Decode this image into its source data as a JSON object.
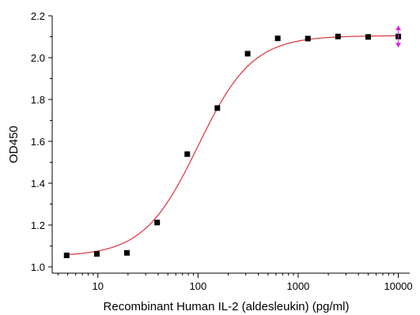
{
  "chart_data": {
    "type": "scatter",
    "title": "",
    "xlabel": "Recombinant Human IL-2 (aldesleukin) (pg/ml)",
    "ylabel": "OD450",
    "x_scale": "log",
    "xlim": [
      3.5,
      13000
    ],
    "ylim": [
      0.97,
      2.2
    ],
    "x_ticks": [
      10,
      100,
      1000,
      10000
    ],
    "x_tick_labels": [
      "10",
      "100",
      "1000",
      "10000"
    ],
    "y_ticks": [
      1.0,
      1.2,
      1.4,
      1.6,
      1.8,
      2.0,
      2.2
    ],
    "y_tick_labels": [
      "1.0",
      "1.2",
      "1.4",
      "1.6",
      "1.8",
      "2.0",
      "2.2"
    ],
    "grid": false,
    "series": [
      {
        "marker": "square",
        "color": "#000000",
        "x": [
          4.88,
          9.77,
          19.5,
          39.1,
          78.1,
          156,
          313,
          625,
          1250,
          2500,
          5000,
          10000
        ],
        "y": [
          1.055,
          1.062,
          1.067,
          1.212,
          1.539,
          1.759,
          2.019,
          2.092,
          2.091,
          2.101,
          2.099,
          2.101
        ]
      }
    ],
    "fit_curve": {
      "type": "4PL",
      "color": "#e0303a",
      "bottom": 1.05,
      "top": 2.105,
      "ec50": 100,
      "hill": 1.6
    },
    "annotation_color": "#e020e0"
  }
}
